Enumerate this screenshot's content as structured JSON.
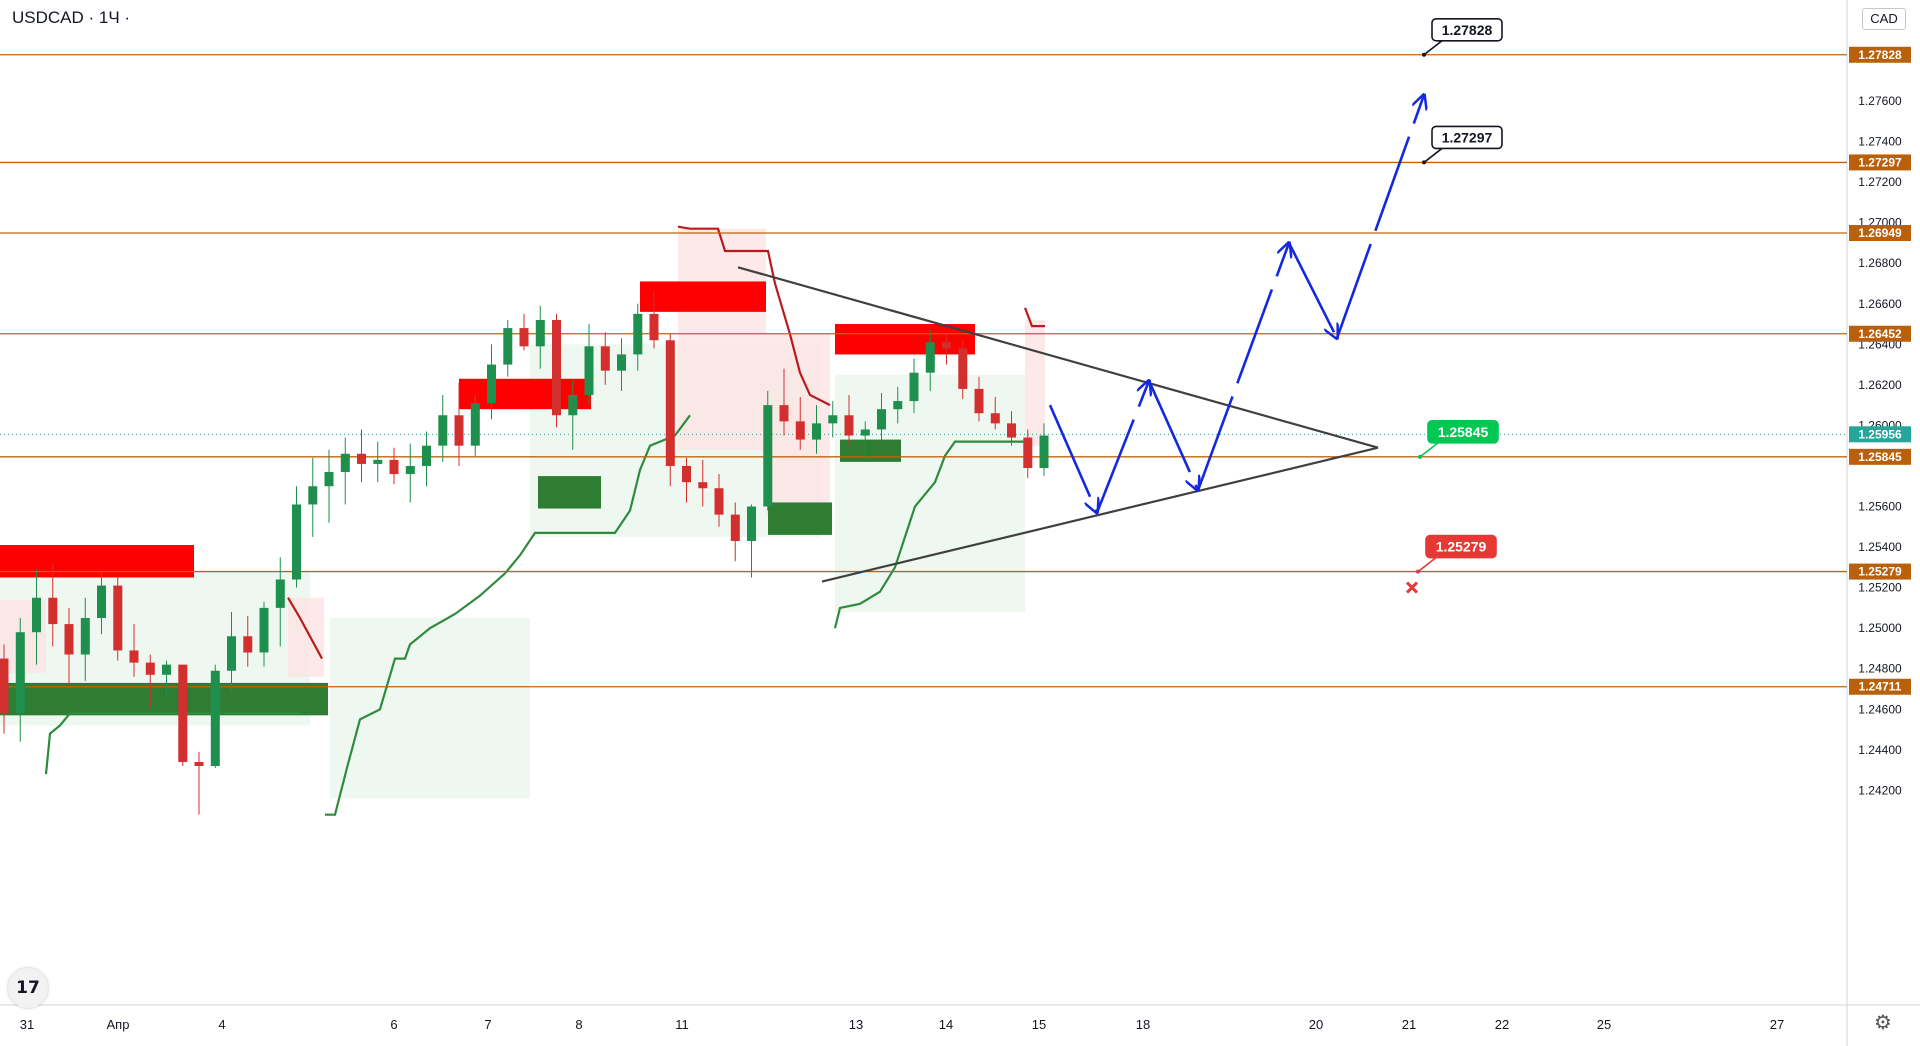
{
  "header": {
    "symbol": "USDCAD · 1Ч ·",
    "currency_button": "CAD"
  },
  "colors": {
    "level_line": "#c0640a",
    "level_badge": "#b8600c",
    "supply_zone": "#ff0000",
    "demand_zone": "#2e7d32",
    "projection": "#1428e0",
    "trendline": "#404040",
    "candle_up": "#1f8f4e",
    "candle_down": "#d32f2f"
  },
  "icons": {
    "logo": "tradingview-logo-icon",
    "settings": "gear-icon",
    "stop": "red-cross-icon"
  },
  "logo_text": "17",
  "settings_glyph": "⚙",
  "chart_data": {
    "type": "candlestick",
    "symbol": "USDCAD",
    "timeframe": "1Ч",
    "ylim": [
      1.2405,
      1.2795
    ],
    "x_ticks": [
      "31",
      "Апр",
      "4",
      "6",
      "7",
      "8",
      "11",
      "13",
      "14",
      "15",
      "18",
      "20",
      "21",
      "22",
      "25",
      "27"
    ],
    "y_ticks": [
      "1.27600",
      "1.27400",
      "1.27200",
      "1.27000",
      "1.26800",
      "1.26600",
      "1.26400",
      "1.26200",
      "1.26000",
      "1.25600",
      "1.25400",
      "1.25200",
      "1.25000",
      "1.24800",
      "1.24600",
      "1.24400",
      "1.24200"
    ],
    "levels": [
      "1.27828",
      "1.27297",
      "1.26949",
      "1.26452",
      "1.25845",
      "1.25279",
      "1.24711"
    ],
    "current_price": "1.25956",
    "callouts": [
      {
        "label": "1.27828",
        "price": 1.27828,
        "style": "target"
      },
      {
        "label": "1.27297",
        "price": 1.27297,
        "style": "target"
      },
      {
        "label": "1.25845",
        "price": 1.25845,
        "style": "entry"
      },
      {
        "label": "1.25279",
        "price": 1.25279,
        "style": "stop"
      }
    ],
    "price_path": [
      [
        1.2485,
        1.2448,
        1.2492,
        1.2458
      ],
      [
        1.2458,
        1.2444,
        1.2505,
        1.2498
      ],
      [
        1.2498,
        1.2482,
        1.2529,
        1.2515
      ],
      [
        1.2515,
        1.2491,
        1.2532,
        1.2502
      ],
      [
        1.2502,
        1.2472,
        1.251,
        1.2487
      ],
      [
        1.2487,
        1.2474,
        1.2515,
        1.2505
      ],
      [
        1.2505,
        1.2497,
        1.2528,
        1.2521
      ],
      [
        1.2521,
        1.2484,
        1.2526,
        1.2489
      ],
      [
        1.2489,
        1.2476,
        1.2502,
        1.2483
      ],
      [
        1.2483,
        1.2461,
        1.2487,
        1.2477
      ],
      [
        1.2477,
        1.2466,
        1.2484,
        1.2482
      ],
      [
        1.2482,
        1.2432,
        1.2482,
        1.2434
      ],
      [
        1.2434,
        1.2408,
        1.2439,
        1.2432
      ],
      [
        1.2432,
        1.2431,
        1.2482,
        1.2479
      ],
      [
        1.2479,
        1.2469,
        1.2508,
        1.2496
      ],
      [
        1.2496,
        1.2481,
        1.2506,
        1.2488
      ],
      [
        1.2488,
        1.2481,
        1.2513,
        1.251
      ],
      [
        1.251,
        1.2491,
        1.2535,
        1.2524
      ],
      [
        1.2524,
        1.252,
        1.257,
        1.2561
      ],
      [
        1.2561,
        1.2545,
        1.2584,
        1.257
      ],
      [
        1.257,
        1.2552,
        1.2588,
        1.2577
      ],
      [
        1.2577,
        1.2561,
        1.2594,
        1.2586
      ],
      [
        1.2586,
        1.2572,
        1.2598,
        1.2581
      ],
      [
        1.2581,
        1.2572,
        1.2592,
        1.2583
      ],
      [
        1.2583,
        1.2571,
        1.2589,
        1.2576
      ],
      [
        1.2576,
        1.2562,
        1.2591,
        1.258
      ],
      [
        1.258,
        1.257,
        1.2597,
        1.259
      ],
      [
        1.259,
        1.2582,
        1.2615,
        1.2605
      ],
      [
        1.2605,
        1.258,
        1.2621,
        1.259
      ],
      [
        1.259,
        1.2585,
        1.2615,
        1.2611
      ],
      [
        1.2611,
        1.2603,
        1.264,
        1.263
      ],
      [
        1.263,
        1.2624,
        1.2652,
        1.2648
      ],
      [
        1.2648,
        1.2637,
        1.2655,
        1.2639
      ],
      [
        1.2639,
        1.2628,
        1.2659,
        1.2652
      ],
      [
        1.2652,
        1.2599,
        1.2655,
        1.2605
      ],
      [
        1.2605,
        1.2588,
        1.2622,
        1.2615
      ],
      [
        1.2615,
        1.261,
        1.265,
        1.2639
      ],
      [
        1.2639,
        1.262,
        1.2646,
        1.2627
      ],
      [
        1.2627,
        1.2617,
        1.2643,
        1.2635
      ],
      [
        1.2635,
        1.2627,
        1.266,
        1.2655
      ],
      [
        1.2655,
        1.2638,
        1.2666,
        1.2642
      ],
      [
        1.2642,
        1.257,
        1.2645,
        1.258
      ],
      [
        1.258,
        1.2562,
        1.2584,
        1.2572
      ],
      [
        1.2572,
        1.256,
        1.2583,
        1.2569
      ],
      [
        1.2569,
        1.255,
        1.2576,
        1.2556
      ],
      [
        1.2556,
        1.2533,
        1.2562,
        1.2543
      ],
      [
        1.2543,
        1.2525,
        1.2561,
        1.256
      ],
      [
        1.256,
        1.2558,
        1.2617,
        1.261
      ],
      [
        1.261,
        1.2595,
        1.2628,
        1.2602
      ],
      [
        1.2602,
        1.2588,
        1.2614,
        1.2593
      ],
      [
        1.2593,
        1.2586,
        1.261,
        1.2601
      ],
      [
        1.2601,
        1.2594,
        1.2612,
        1.2605
      ],
      [
        1.2605,
        1.259,
        1.2615,
        1.2595
      ],
      [
        1.2595,
        1.2583,
        1.2602,
        1.2598
      ],
      [
        1.2598,
        1.2592,
        1.2616,
        1.2608
      ],
      [
        1.2608,
        1.2601,
        1.2619,
        1.2612
      ],
      [
        1.2612,
        1.2606,
        1.2633,
        1.2626
      ],
      [
        1.2626,
        1.2617,
        1.2647,
        1.2641
      ],
      [
        1.2641,
        1.263,
        1.2645,
        1.2638
      ],
      [
        1.2638,
        1.2613,
        1.2642,
        1.2618
      ],
      [
        1.2618,
        1.2602,
        1.2624,
        1.2606
      ],
      [
        1.2606,
        1.2598,
        1.2614,
        1.2601
      ],
      [
        1.2601,
        1.259,
        1.2607,
        1.2594
      ],
      [
        1.2594,
        1.2574,
        1.2598,
        1.2579
      ],
      [
        1.2579,
        1.2575,
        1.2601,
        1.2595
      ]
    ]
  }
}
